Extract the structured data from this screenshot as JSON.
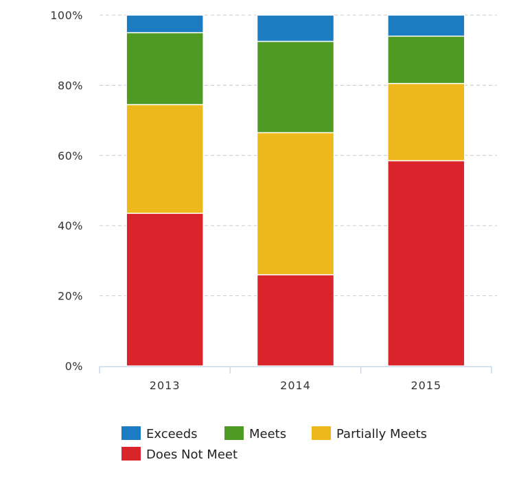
{
  "chart_data": {
    "type": "bar",
    "stacked": true,
    "normalized": true,
    "categories": [
      "2013",
      "2014",
      "2015"
    ],
    "series": [
      {
        "name": "Does Not Meet",
        "color": "#d8242a",
        "values": [
          43.5,
          26,
          58.5
        ]
      },
      {
        "name": "Partially Meets",
        "color": "#edb81b",
        "values": [
          31,
          40.5,
          22
        ]
      },
      {
        "name": "Meets",
        "color": "#4f9a22",
        "values": [
          20.5,
          26,
          13.5
        ]
      },
      {
        "name": "Exceeds",
        "color": "#1c7cc2",
        "values": [
          5,
          7.5,
          6
        ]
      }
    ],
    "yticks": [
      "0%",
      "20%",
      "40%",
      "60%",
      "80%",
      "100%"
    ],
    "ylim": [
      0,
      100
    ],
    "grid": "dashed-horizontal",
    "legend": {
      "position": "bottom",
      "order": [
        "Exceeds",
        "Meets",
        "Partially Meets",
        "Does Not Meet"
      ]
    }
  }
}
